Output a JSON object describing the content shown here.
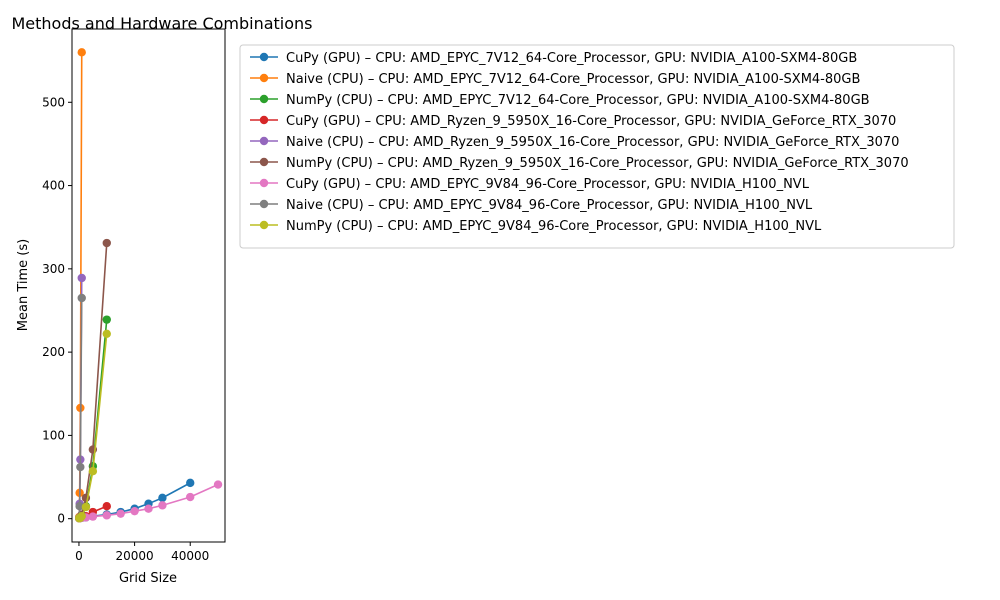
{
  "chart_data": {
    "type": "line",
    "title": "Methods and Hardware Combinations",
    "xlabel": "Grid Size",
    "ylabel": "Mean Time (s)",
    "xlim": [
      -2500,
      52500
    ],
    "ylim": [
      -28,
      588
    ],
    "xticks": [
      0,
      20000,
      40000
    ],
    "xtick_labels": [
      "0",
      "20000",
      "40000"
    ],
    "yticks": [
      0,
      100,
      200,
      300,
      400,
      500
    ],
    "ytick_labels": [
      "0",
      "100",
      "200",
      "300",
      "400",
      "500"
    ],
    "legend_position": "right",
    "grid": false,
    "series": [
      {
        "name": "CuPy (GPU) – CPU: AMD_EPYC_7V12_64-Core_Processor, GPU: NVIDIA_A100-SXM4-80GB",
        "color": "#1f77b4",
        "x": [
          100,
          500,
          1000,
          2500,
          5000,
          10000,
          15000,
          20000,
          25000,
          30000,
          40000
        ],
        "y": [
          0.5,
          0.6,
          1,
          1.5,
          3,
          5,
          8,
          12,
          18,
          25,
          43
        ]
      },
      {
        "name": "Naive (CPU) – CPU: AMD_EPYC_7V12_64-Core_Processor, GPU: NVIDIA_A100-SXM4-80GB",
        "color": "#ff7f0e",
        "x": [
          100,
          250,
          500,
          1000
        ],
        "y": [
          2,
          31,
          133,
          560
        ]
      },
      {
        "name": "NumPy (CPU) – CPU: AMD_EPYC_7V12_64-Core_Processor, GPU: NVIDIA_A100-SXM4-80GB",
        "color": "#2ca02c",
        "x": [
          100,
          500,
          1000,
          2500,
          5000,
          10000
        ],
        "y": [
          0.5,
          1,
          3,
          15,
          63,
          239
        ]
      },
      {
        "name": "CuPy (GPU) – CPU: AMD_Ryzen_9_5950X_16-Core_Processor, GPU: NVIDIA_GeForce_RTX_3070",
        "color": "#d62728",
        "x": [
          100,
          500,
          1000,
          2500,
          5000,
          10000
        ],
        "y": [
          0.5,
          0.8,
          1.5,
          3,
          8,
          15
        ]
      },
      {
        "name": "Naive (CPU) – CPU: AMD_Ryzen_9_5950X_16-Core_Processor, GPU: NVIDIA_GeForce_RTX_3070",
        "color": "#9467bd",
        "x": [
          100,
          250,
          500,
          1000
        ],
        "y": [
          1,
          18,
          71,
          289
        ]
      },
      {
        "name": "NumPy (CPU) – CPU: AMD_Ryzen_9_5950X_16-Core_Processor, GPU: NVIDIA_GeForce_RTX_3070",
        "color": "#8c564b",
        "x": [
          100,
          500,
          1000,
          2500,
          5000,
          10000
        ],
        "y": [
          0.5,
          1.5,
          5,
          25,
          83,
          331
        ]
      },
      {
        "name": "CuPy (GPU) – CPU: AMD_EPYC_9V84_96-Core_Processor, GPU: NVIDIA_H100_NVL",
        "color": "#e377c2",
        "x": [
          100,
          500,
          1000,
          2500,
          5000,
          10000,
          15000,
          20000,
          25000,
          30000,
          40000,
          50000
        ],
        "y": [
          0.5,
          0.6,
          1,
          1.5,
          2.5,
          4,
          6,
          9,
          12,
          16,
          26,
          41
        ]
      },
      {
        "name": "Naive (CPU) – CPU: AMD_EPYC_9V84_96-Core_Processor, GPU: NVIDIA_H100_NVL",
        "color": "#7f7f7f",
        "x": [
          100,
          250,
          500,
          1000
        ],
        "y": [
          1,
          15,
          62,
          265
        ]
      },
      {
        "name": "NumPy (CPU) – CPU: AMD_EPYC_9V84_96-Core_Processor, GPU: NVIDIA_H100_NVL",
        "color": "#bcbd22",
        "x": [
          100,
          500,
          1000,
          2500,
          5000,
          10000
        ],
        "y": [
          0.5,
          1,
          3,
          14,
          57,
          222
        ]
      }
    ]
  }
}
